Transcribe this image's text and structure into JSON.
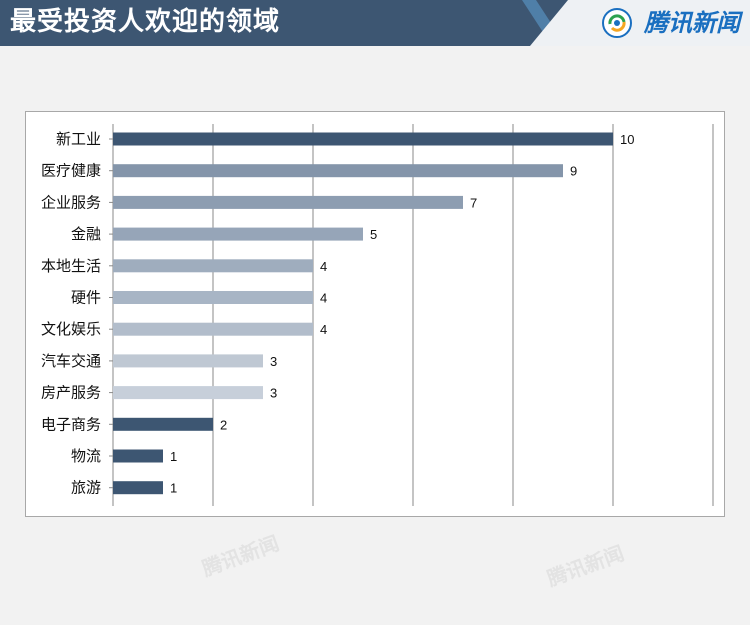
{
  "header": {
    "title": "最受投资人欢迎的领域",
    "brand": "腾讯新闻",
    "background_color": "#3d5672",
    "brand_color": "#1a6fc0"
  },
  "watermarks": [
    "腾讯新闻",
    "腾讯新闻"
  ],
  "chart_data": {
    "type": "bar",
    "orientation": "horizontal",
    "title": "",
    "xlabel": "",
    "ylabel": "",
    "categories": [
      "新工业",
      "医疗健康",
      "企业服务",
      "金融",
      "本地生活",
      "硬件",
      "文化娱乐",
      "汽车交通",
      "房产服务",
      "电子商务",
      "物流",
      "旅游"
    ],
    "values": [
      10,
      9,
      7,
      5,
      4,
      4,
      4,
      3,
      3,
      2,
      1,
      1
    ],
    "value_labels": [
      "10",
      "9",
      "7",
      "5",
      "4",
      "4",
      "4",
      "3",
      "3",
      "2",
      "1",
      "1"
    ],
    "bar_colors": [
      "#3d5672",
      "#8495aa",
      "#8d9db1",
      "#96a5b8",
      "#9fadbe",
      "#a8b5c5",
      "#b2bdcb",
      "#bfc8d3",
      "#c7cfda",
      "#3d5672",
      "#3d5672",
      "#3d5672"
    ],
    "xlim": [
      0,
      12
    ],
    "grid": true,
    "grid_step": 2,
    "x_tick_labels_shown": false,
    "legend": false
  }
}
